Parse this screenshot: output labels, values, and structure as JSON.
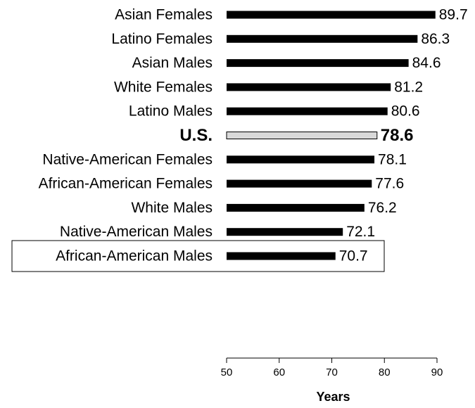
{
  "chart_data": {
    "type": "bar",
    "orientation": "horizontal",
    "categories": [
      "Asian Females",
      "Latino Females",
      "Asian Males",
      "White Females",
      "Latino Males",
      "U.S.",
      "Native-American Females",
      "African-American Females",
      "White Males",
      "Native-American Males",
      "African-American Males"
    ],
    "values": [
      89.7,
      86.3,
      84.6,
      81.2,
      80.6,
      78.6,
      78.1,
      77.6,
      76.2,
      72.1,
      70.7
    ],
    "highlight_category": "U.S.",
    "boxed_category": "African-American Males",
    "bar_color": "#000000",
    "highlight_bar_color": "#d9d9d9",
    "xlabel": "Years",
    "xlim": [
      50,
      90
    ],
    "xticks": [
      50,
      60,
      70,
      80,
      90
    ],
    "grid": false,
    "legend": "none"
  }
}
